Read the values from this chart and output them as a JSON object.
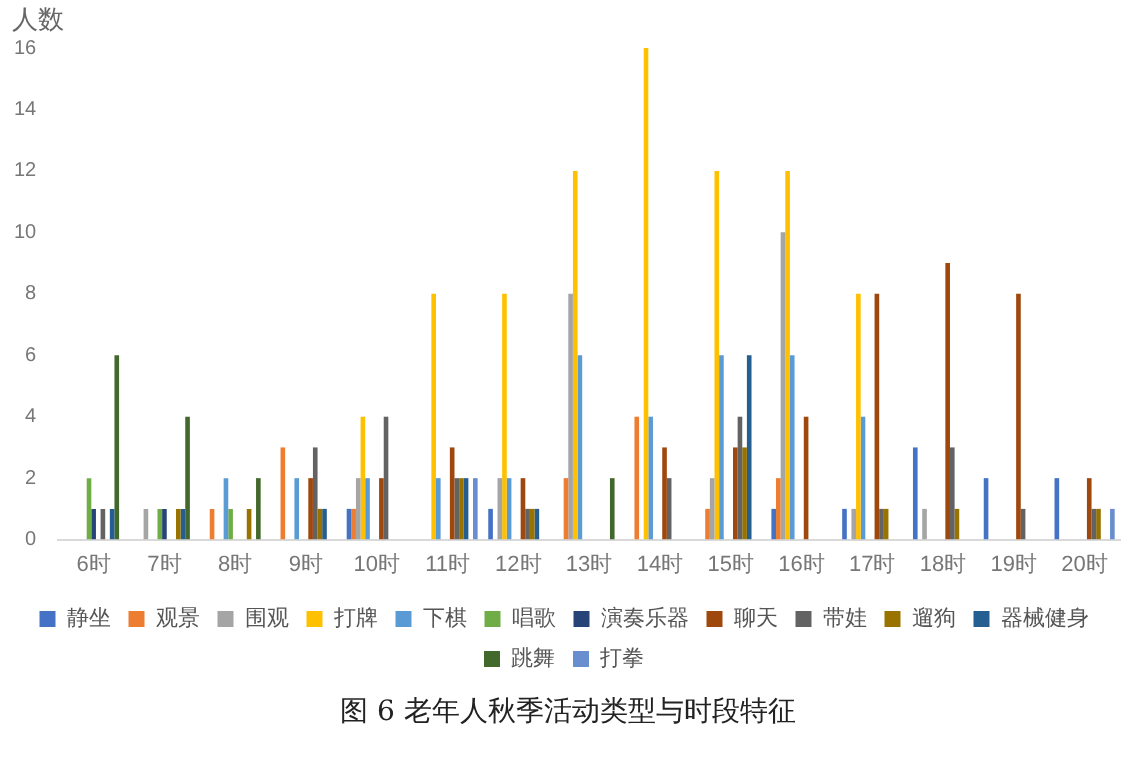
{
  "chart_data": {
    "type": "bar",
    "title": "图 6  老年人秋季活动类型与时段特征",
    "ylabel": "人数",
    "categories": [
      "6时",
      "7时",
      "8时",
      "9时",
      "10时",
      "11时",
      "12时",
      "13时",
      "14时",
      "15时",
      "16时",
      "17时",
      "18时",
      "19时",
      "20时"
    ],
    "series": [
      {
        "name": "静坐",
        "color": "#4472c4",
        "values": [
          null,
          null,
          null,
          null,
          1,
          null,
          1,
          null,
          null,
          null,
          1,
          1,
          3,
          2,
          2
        ]
      },
      {
        "name": "观景",
        "color": "#ed7d31",
        "values": [
          null,
          null,
          1,
          3,
          1,
          null,
          null,
          2,
          4,
          1,
          2,
          null,
          null,
          null,
          null
        ]
      },
      {
        "name": "围观",
        "color": "#a5a5a5",
        "values": [
          null,
          1,
          null,
          null,
          2,
          null,
          2,
          8,
          null,
          2,
          10,
          1,
          1,
          null,
          null
        ]
      },
      {
        "name": "打牌",
        "color": "#ffc000",
        "values": [
          null,
          null,
          null,
          null,
          4,
          8,
          8,
          12,
          16,
          12,
          12,
          8,
          null,
          null,
          null
        ]
      },
      {
        "name": "下棋",
        "color": "#5b9bd5",
        "values": [
          null,
          null,
          2,
          2,
          2,
          2,
          2,
          6,
          4,
          6,
          6,
          4,
          null,
          null,
          null
        ]
      },
      {
        "name": "唱歌",
        "color": "#70ad47",
        "values": [
          2,
          1,
          1,
          null,
          null,
          null,
          null,
          null,
          null,
          null,
          null,
          null,
          null,
          null,
          null
        ]
      },
      {
        "name": "演奏乐器",
        "color": "#264478",
        "values": [
          1,
          1,
          null,
          null,
          null,
          null,
          null,
          null,
          null,
          null,
          null,
          null,
          null,
          null,
          null
        ]
      },
      {
        "name": "聊天",
        "color": "#9e480e",
        "values": [
          null,
          null,
          null,
          2,
          2,
          3,
          2,
          null,
          3,
          3,
          4,
          8,
          9,
          8,
          2
        ]
      },
      {
        "name": "带娃",
        "color": "#636363",
        "values": [
          1,
          null,
          null,
          3,
          4,
          2,
          1,
          null,
          2,
          4,
          null,
          1,
          3,
          1,
          1
        ]
      },
      {
        "name": "遛狗",
        "color": "#997300",
        "values": [
          null,
          1,
          1,
          1,
          null,
          2,
          1,
          null,
          null,
          3,
          null,
          1,
          1,
          null,
          1
        ]
      },
      {
        "name": "器械健身",
        "color": "#255e91",
        "values": [
          1,
          1,
          null,
          1,
          null,
          2,
          1,
          null,
          null,
          6,
          null,
          null,
          null,
          null,
          null
        ]
      },
      {
        "name": "跳舞",
        "color": "#43682b",
        "values": [
          6,
          4,
          2,
          null,
          null,
          null,
          null,
          2,
          null,
          null,
          null,
          null,
          null,
          null,
          null
        ]
      },
      {
        "name": "打拳",
        "color": "#698ed0",
        "values": [
          null,
          null,
          null,
          null,
          null,
          2,
          null,
          null,
          null,
          null,
          null,
          null,
          null,
          null,
          1
        ]
      }
    ],
    "ylim": [
      0,
      16
    ],
    "yticks": [
      0,
      2,
      4,
      6,
      8,
      10,
      12,
      14,
      16
    ],
    "grid": false,
    "legend": "bottom"
  }
}
